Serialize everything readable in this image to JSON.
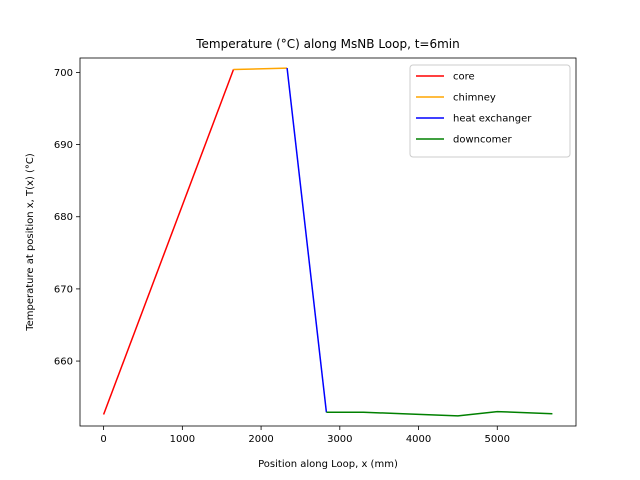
{
  "chart_data": {
    "type": "line",
    "title": "Temperature (°C) along MsNB Loop, t=6min",
    "xlabel": "Position along Loop, x (mm)",
    "ylabel": "Temperature at position x, T(x) (°C)",
    "xlim": [
      -300,
      6000
    ],
    "ylim": [
      651,
      702
    ],
    "xticks": [
      0,
      1000,
      2000,
      3000,
      4000,
      5000
    ],
    "yticks": [
      660,
      670,
      680,
      690,
      700
    ],
    "grid": false,
    "legend_position": "top-right",
    "series": [
      {
        "name": "core",
        "color": "#ff0000",
        "x": [
          0,
          1650
        ],
        "y": [
          652.6,
          700.4
        ]
      },
      {
        "name": "chimney",
        "color": "#ffa500",
        "x": [
          1650,
          2330
        ],
        "y": [
          700.4,
          700.6
        ]
      },
      {
        "name": "heat exchanger",
        "color": "#0000ff",
        "x": [
          2330,
          2830
        ],
        "y": [
          700.6,
          652.9
        ]
      },
      {
        "name": "downcomer",
        "color": "#008000",
        "x": [
          2830,
          3300,
          3800,
          4500,
          5000,
          5700
        ],
        "y": [
          652.9,
          652.9,
          652.7,
          652.4,
          653.0,
          652.7
        ]
      }
    ]
  }
}
